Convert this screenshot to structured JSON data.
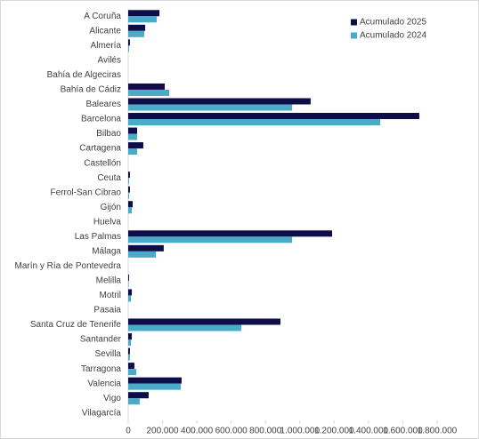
{
  "chart_data": {
    "type": "hbar",
    "categories": [
      "A Coruña",
      "Alicante",
      "Almería",
      "Avilés",
      "Bahía de Algeciras",
      "Bahía de Cádiz",
      "Baleares",
      "Barcelona",
      "Bilbao",
      "Cartagena",
      "Castellón",
      "Ceuta",
      "Ferrol-San Cibrao",
      "Gijón",
      "Huelva",
      "Las Palmas",
      "Málaga",
      "Marín y Ría de Pontevedra",
      "Melilla",
      "Motril",
      "Pasaia",
      "Santa Cruz de Tenerife",
      "Santander",
      "Sevilla",
      "Tarragona",
      "Valencia",
      "Vigo",
      "Vilagarcía"
    ],
    "series": [
      {
        "name": "Acumulado 2025",
        "color": "#0d0d4a",
        "values": [
          182000,
          99000,
          10000,
          0,
          0,
          213000,
          1063000,
          1696000,
          52000,
          88000,
          0,
          10000,
          10000,
          26000,
          0,
          1188000,
          207000,
          0,
          5000,
          21000,
          0,
          887000,
          21000,
          10000,
          36000,
          311000,
          119000,
          0
        ]
      },
      {
        "name": "Acumulado 2024",
        "color": "#4aabc9",
        "values": [
          166000,
          93000,
          5000,
          0,
          0,
          239000,
          955000,
          1468000,
          52000,
          52000,
          0,
          5000,
          5000,
          21000,
          0,
          955000,
          161000,
          0,
          3000,
          16000,
          0,
          659000,
          16000,
          10000,
          47000,
          306000,
          67000,
          0
        ]
      }
    ],
    "xlim": [
      0,
      1800000
    ],
    "xticks": [
      0,
      {
        "value": 200000,
        "label": "200.000"
      },
      {
        "value": 400000,
        "label": "400.000"
      },
      {
        "value": 600000,
        "label": "600.000"
      },
      {
        "value": 800000,
        "label": "800.000"
      },
      {
        "value": 1000000,
        "label": "1.000.000"
      },
      {
        "value": 1200000,
        "label": "1.200.000"
      },
      {
        "value": 1400000,
        "label": "1.400.000"
      },
      {
        "value": 1600000,
        "label": "1.600.000"
      },
      {
        "value": 1800000,
        "label": "1.800.000"
      }
    ],
    "legend": "top-right"
  }
}
